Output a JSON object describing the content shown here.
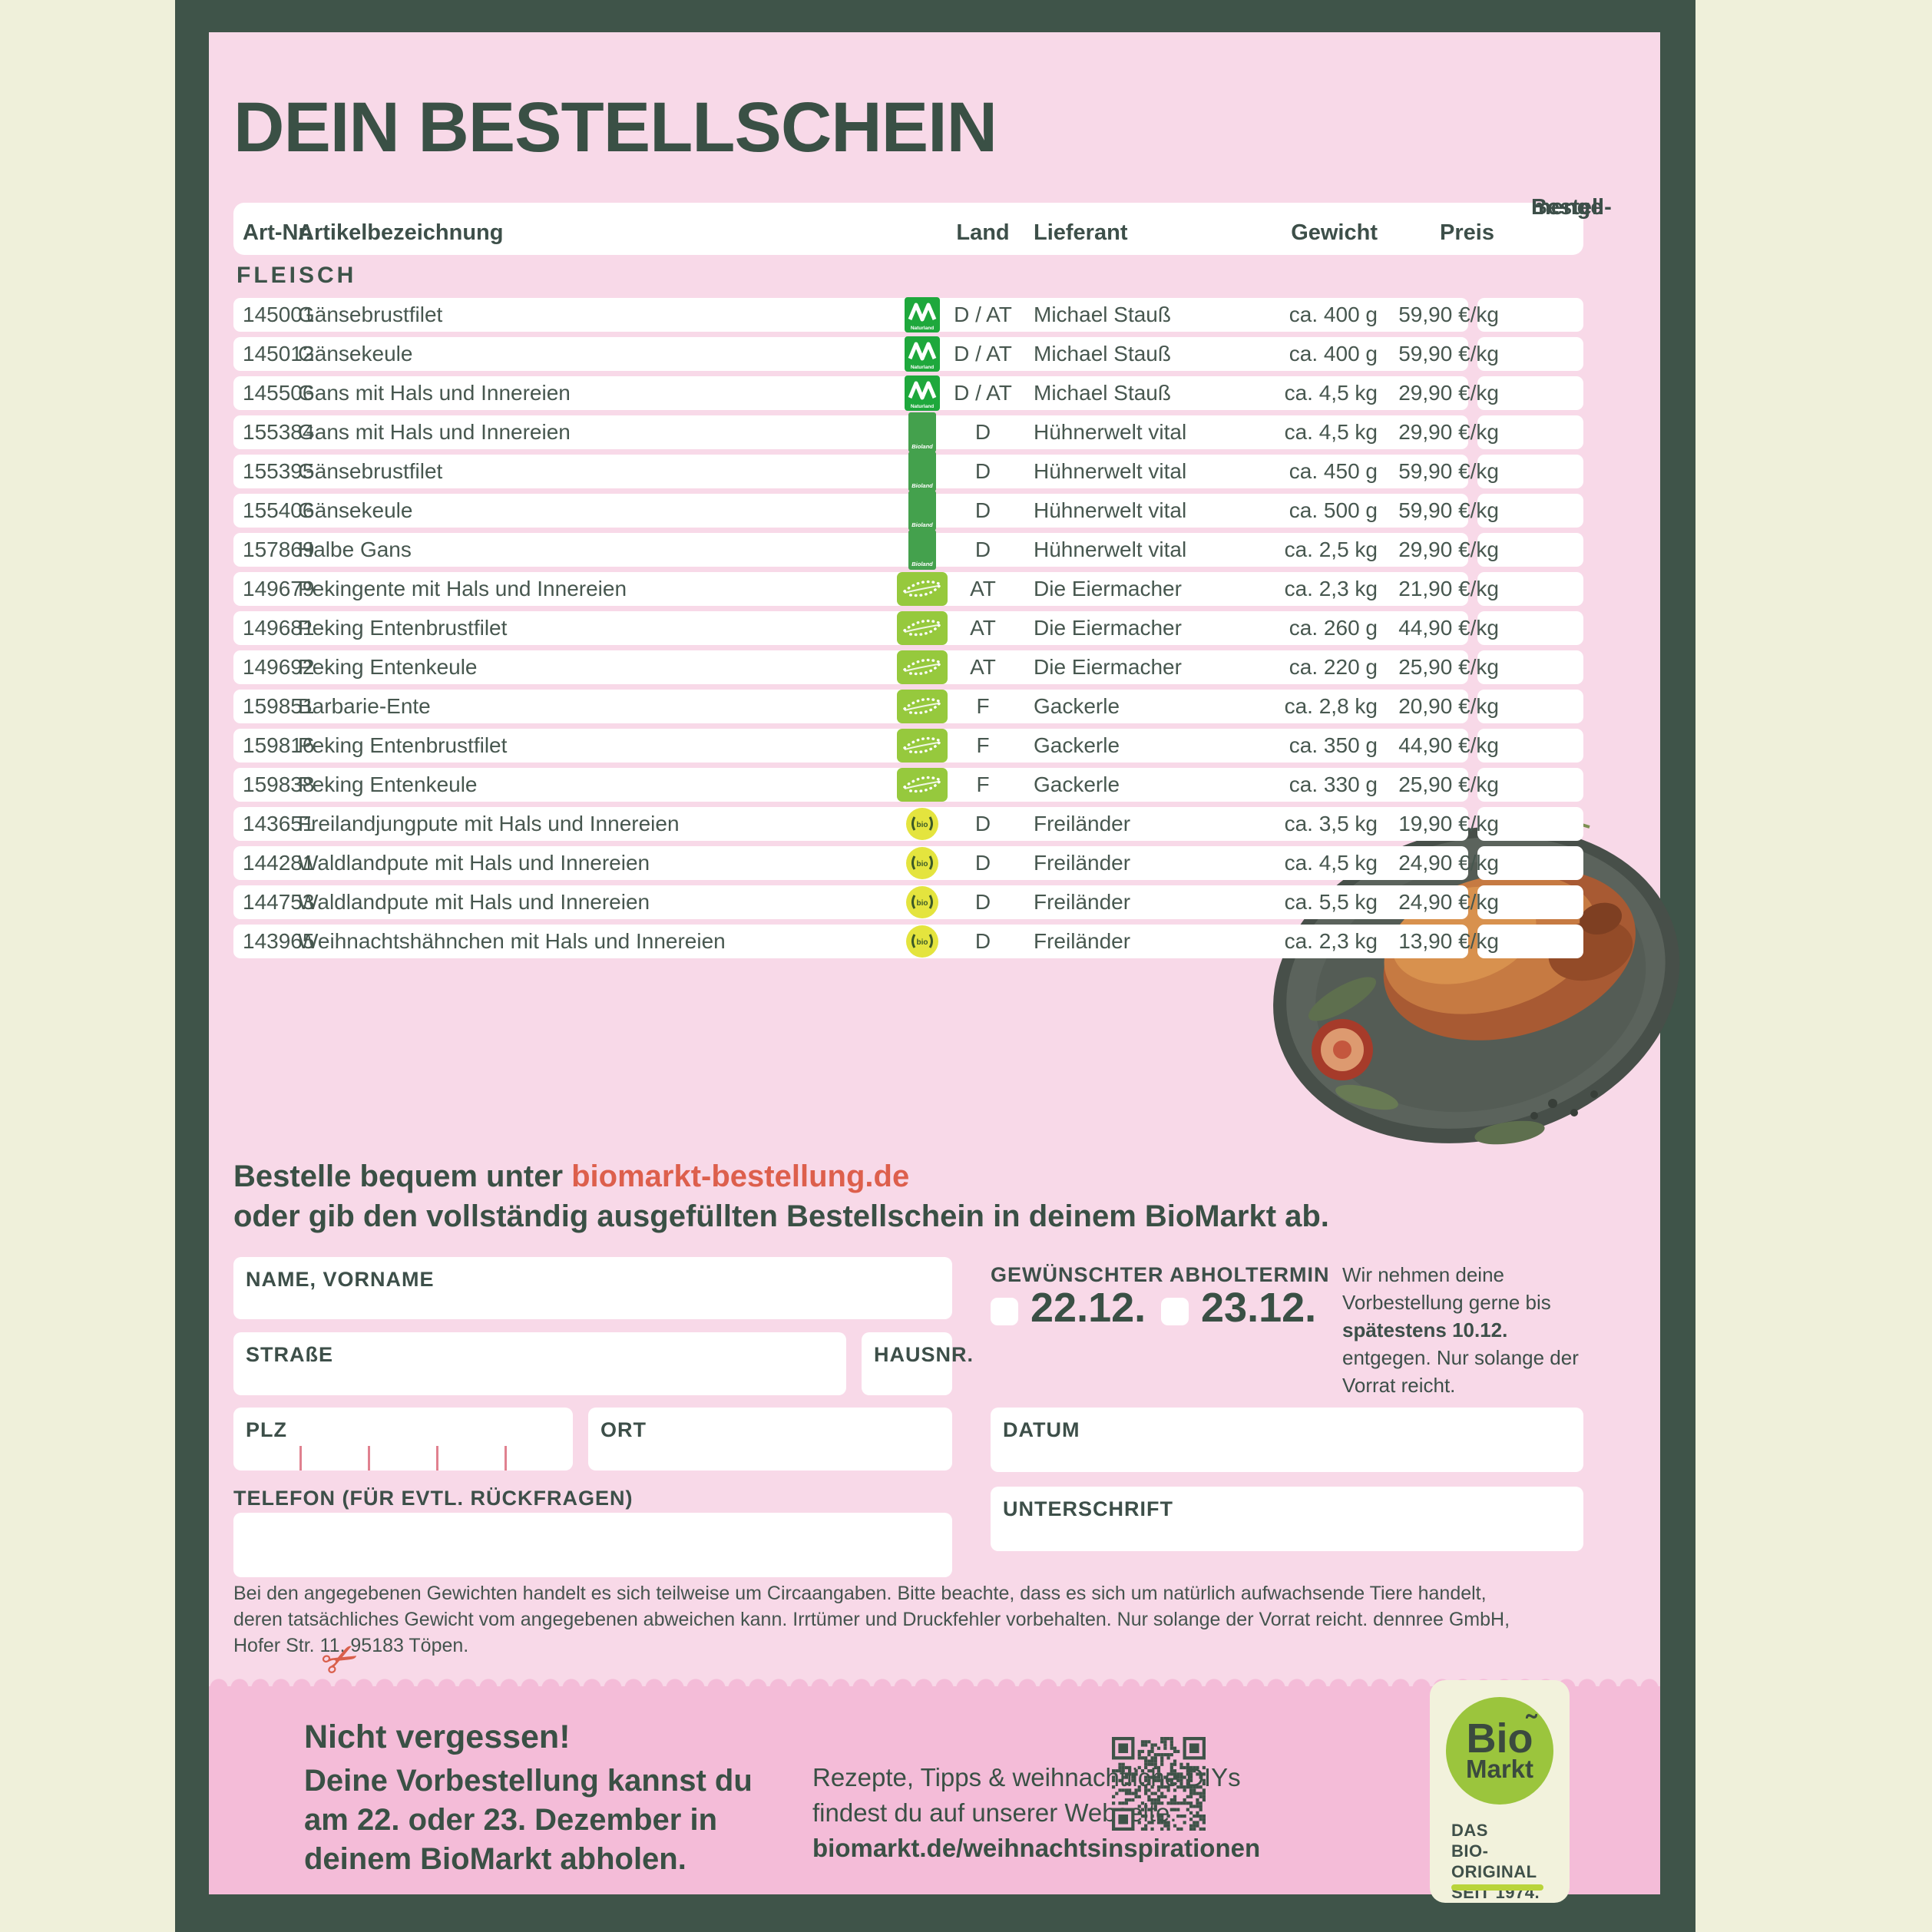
{
  "page": {
    "title": "DEIN BESTELLSCHEIN",
    "section_label": "FLEISCH",
    "table": {
      "headers": {
        "artnr": "Art-Nr.",
        "artikel": "Artikelbezeichnung",
        "land": "Land",
        "lieferant": "Lieferant",
        "gewicht": "Gewicht",
        "preis": "Preis",
        "menge_line1": "Bestell-",
        "menge_line2": "menge"
      },
      "rows": [
        {
          "artnr": "145001",
          "artikel": "Gänsebrustfilet",
          "logo": "naturland",
          "land": "D / AT",
          "lieferant": "Michael Stauß",
          "gewicht": "ca. 400 g",
          "preis": "59,90 €/kg"
        },
        {
          "artnr": "145012",
          "artikel": "Gänsekeule",
          "logo": "naturland",
          "land": "D / AT",
          "lieferant": "Michael Stauß",
          "gewicht": "ca. 400 g",
          "preis": "59,90 €/kg"
        },
        {
          "artnr": "145506",
          "artikel": "Gans mit Hals und Innereien",
          "logo": "naturland",
          "land": "D / AT",
          "lieferant": "Michael Stauß",
          "gewicht": "ca. 4,5 kg",
          "preis": "29,90 €/kg"
        },
        {
          "artnr": "155384",
          "artikel": "Gans mit Hals und Innereien",
          "logo": "bioland",
          "land": "D",
          "lieferant": "Hühnerwelt vital",
          "gewicht": "ca. 4,5 kg",
          "preis": "29,90 €/kg"
        },
        {
          "artnr": "155395",
          "artikel": "Gänsebrustfilet",
          "logo": "bioland",
          "land": "D",
          "lieferant": "Hühnerwelt vital",
          "gewicht": "ca. 450 g",
          "preis": "59,90 €/kg"
        },
        {
          "artnr": "155406",
          "artikel": "Gänsekeule",
          "logo": "bioland",
          "land": "D",
          "lieferant": "Hühnerwelt vital",
          "gewicht": "ca. 500 g",
          "preis": "59,90 €/kg"
        },
        {
          "artnr": "157869",
          "artikel": "Halbe Gans",
          "logo": "bioland",
          "land": "D",
          "lieferant": "Hühnerwelt vital",
          "gewicht": "ca. 2,5 kg",
          "preis": "29,90 €/kg"
        },
        {
          "artnr": "149679",
          "artikel": "Pekingente mit Hals und Innereien",
          "logo": "eubio",
          "land": "AT",
          "lieferant": "Die Eiermacher",
          "gewicht": "ca. 2,3 kg",
          "preis": "21,90 €/kg"
        },
        {
          "artnr": "149681",
          "artikel": "Peking Entenbrustfilet",
          "logo": "eubio",
          "land": "AT",
          "lieferant": "Die Eiermacher",
          "gewicht": "ca. 260 g",
          "preis": "44,90 €/kg"
        },
        {
          "artnr": "149692",
          "artikel": "Peking Entenkeule",
          "logo": "eubio",
          "land": "AT",
          "lieferant": "Die Eiermacher",
          "gewicht": "ca. 220 g",
          "preis": "25,90 €/kg"
        },
        {
          "artnr": "159851",
          "artikel": "Barbarie-Ente",
          "logo": "eubio",
          "land": "F",
          "lieferant": "Gackerle",
          "gewicht": "ca. 2,8 kg",
          "preis": "20,90 €/kg"
        },
        {
          "artnr": "159816",
          "artikel": "Peking Entenbrustfilet",
          "logo": "eubio",
          "land": "F",
          "lieferant": "Gackerle",
          "gewicht": "ca. 350 g",
          "preis": "44,90 €/kg"
        },
        {
          "artnr": "159838",
          "artikel": "Peking Entenkeule",
          "logo": "eubio",
          "land": "F",
          "lieferant": "Gackerle",
          "gewicht": "ca. 330 g",
          "preis": "25,90 €/kg"
        },
        {
          "artnr": "143651",
          "artikel": "Freilandjungpute mit Hals und Innereien",
          "logo": "freiland",
          "land": "D",
          "lieferant": "Freiländer",
          "gewicht": "ca. 3,5 kg",
          "preis": "19,90 €/kg"
        },
        {
          "artnr": "144281",
          "artikel": "Waldlandpute mit Hals und Innereien",
          "logo": "freiland",
          "land": "D",
          "lieferant": "Freiländer",
          "gewicht": "ca. 4,5 kg",
          "preis": "24,90 €/kg"
        },
        {
          "artnr": "144753",
          "artikel": "Waldlandpute mit Hals und Innereien",
          "logo": "freiland",
          "land": "D",
          "lieferant": "Freiländer",
          "gewicht": "ca. 5,5 kg",
          "preis": "24,90 €/kg"
        },
        {
          "artnr": "143965",
          "artikel": "Weihnachtshähnchen mit Hals und Innereien",
          "logo": "freiland",
          "land": "D",
          "lieferant": "Freiländer",
          "gewicht": "ca. 2,3 kg",
          "preis": "13,90 €/kg"
        }
      ]
    },
    "cta": {
      "pre": "Bestelle bequem unter ",
      "link": "biomarkt-bestellung.de",
      "line2": "oder gib den vollständig ausgefüllten Bestellschein in deinem BioMarkt ab."
    },
    "form": {
      "name_label": "NAME, VORNAME",
      "strasse_label": "STRAßE",
      "hausnr_label": "HAUSNR.",
      "plz_label": "PLZ",
      "ort_label": "ORT",
      "telefon_label": "TELEFON (FÜR EVTL. RÜCKFRAGEN)",
      "abholtermin_label": "GEWÜNSCHTER ABHOLTERMIN",
      "date_option_1": "22.12.",
      "date_option_2": "23.12.",
      "datum_label": "DATUM",
      "unterschrift_label": "UNTERSCHRIFT",
      "note_pre": "Wir nehmen deine Vorbestellung gerne bis ",
      "note_bold": "spätestens 10.12.",
      "note_post": " entgegen. Nur solange der Vorrat reicht."
    },
    "fine_print": "Bei den angegebenen Gewichten handelt es sich teilweise um Circaangaben. Bitte beachte, dass es sich um natürlich aufwachsende Tiere handelt, deren tatsächliches Gewicht vom angegebenen abweichen kann. Irrtümer und Druckfehler vorbehalten. Nur solange der Vorrat reicht. dennree GmbH, Hofer Str. 11, 95183 Töpen.",
    "footer": {
      "reminder_title": "Nicht vergessen!",
      "reminder_line1": "Deine Vorbestellung kannst du",
      "reminder_line2_pre": "am ",
      "reminder_line2_bold": "22. oder 23. Dezember",
      "reminder_line2_post": " in",
      "reminder_line3": "deinem BioMarkt abholen.",
      "website_line1": "Rezepte, Tipps & weihnachtliche DIYs",
      "website_line2": "findest du auf unserer Webseite:",
      "website_line3": "biomarkt.de/weihnachtsinspirationen",
      "logo_line1": "Bio",
      "logo_line2": "Markt",
      "logo_tagline1": "DAS",
      "logo_tagline2": "BIO-ORIGINAL",
      "logo_tagline3": "SEIT 1974."
    },
    "colors": {
      "frame_green": "#3f5449",
      "page_pink": "#f8d9e8",
      "bottom_pink": "#f4bcd8",
      "accent_coral": "#dd5f4c",
      "ink_green": "#3a5045",
      "biomarkt_green": "#9bc53d",
      "naturland_green": "#1ea83c",
      "bioland_green": "#44a14d",
      "eu_bio_green": "#96c93d",
      "freiland_yellow": "#e4e43e"
    }
  }
}
